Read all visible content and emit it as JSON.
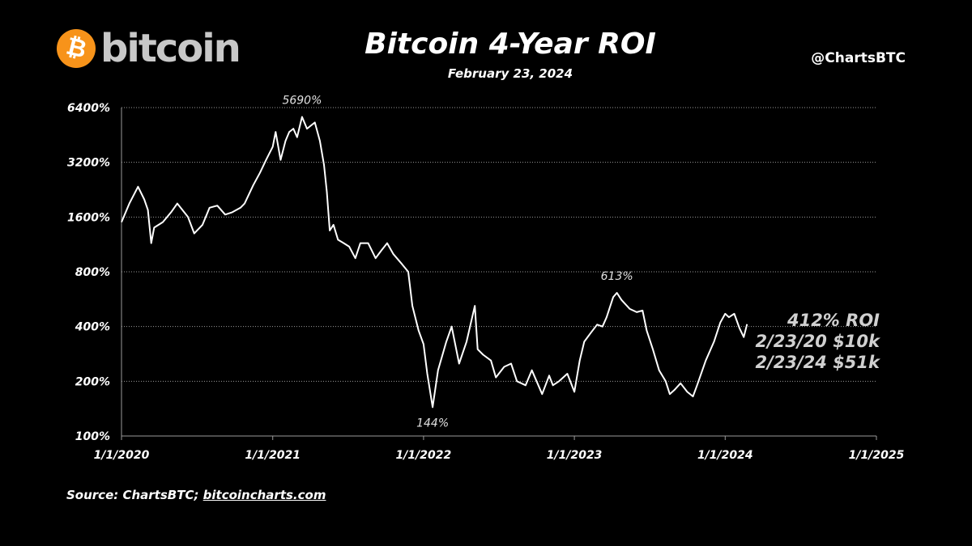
{
  "brand": {
    "wordmark": "bitcoin",
    "symbol": "₿",
    "icon": "bitcoin-logo-icon",
    "color": "#f7931a"
  },
  "handle": "@ChartsBTC",
  "source": {
    "prefix": "Source: ChartsBTC; ",
    "link": "bitcoincharts.com"
  },
  "callout": {
    "roi": "412% ROI",
    "line1": "2/23/20 $10k",
    "line2": "2/23/24 $51k"
  },
  "chart_data": {
    "type": "line",
    "title": "Bitcoin 4-Year ROI",
    "subtitle": "February 23, 2024",
    "xlabel": "",
    "ylabel": "",
    "y_scale": "log2",
    "ylim": [
      100,
      6400
    ],
    "xlim": [
      "2020-01-01",
      "2025-01-01"
    ],
    "y_ticks": [
      100,
      200,
      400,
      800,
      1600,
      3200,
      6400
    ],
    "y_tick_labels": [
      "100%",
      "200%",
      "400%",
      "800%",
      "1600%",
      "3200%",
      "6400%"
    ],
    "x_ticks": [
      "2020-01-01",
      "2021-01-01",
      "2022-01-01",
      "2023-01-01",
      "2024-01-01",
      "2025-01-01"
    ],
    "x_tick_labels": [
      "1/1/2020",
      "1/1/2021",
      "1/1/2022",
      "1/1/2023",
      "1/1/2024",
      "1/1/2025"
    ],
    "grid": {
      "horizontal": true,
      "style": "dotted"
    },
    "line_color": "#ffffff",
    "series": [
      {
        "x": [
          "2020-01-01",
          "2020-01-20",
          "2020-02-10",
          "2020-02-25",
          "2020-03-05",
          "2020-03-13",
          "2020-03-20",
          "2020-04-10",
          "2020-04-30",
          "2020-05-15",
          "2020-06-10",
          "2020-06-25",
          "2020-07-15",
          "2020-08-01",
          "2020-08-20",
          "2020-09-08",
          "2020-09-25",
          "2020-10-15",
          "2020-10-25",
          "2020-11-15",
          "2020-12-01",
          "2020-12-16",
          "2021-01-01",
          "2021-01-08",
          "2021-01-20",
          "2021-02-01",
          "2021-02-10",
          "2021-02-20",
          "2021-03-01",
          "2021-03-13",
          "2021-03-25",
          "2021-04-13",
          "2021-04-25",
          "2021-05-05",
          "2021-05-12",
          "2021-05-19",
          "2021-05-28",
          "2021-06-08",
          "2021-06-22",
          "2021-07-05",
          "2021-07-20",
          "2021-08-01",
          "2021-08-20",
          "2021-09-07",
          "2021-09-21",
          "2021-10-05",
          "2021-10-20",
          "2021-11-10",
          "2021-11-25",
          "2021-12-05",
          "2021-12-20",
          "2022-01-01",
          "2022-01-10",
          "2022-01-23",
          "2022-02-05",
          "2022-02-25",
          "2022-03-10",
          "2022-03-28",
          "2022-04-15",
          "2022-05-05",
          "2022-05-12",
          "2022-05-25",
          "2022-06-13",
          "2022-06-25",
          "2022-07-15",
          "2022-08-01",
          "2022-08-15",
          "2022-09-05",
          "2022-09-20",
          "2022-10-15",
          "2022-11-01",
          "2022-11-10",
          "2022-11-25",
          "2022-12-15",
          "2023-01-01",
          "2023-01-14",
          "2023-01-25",
          "2023-02-10",
          "2023-02-25",
          "2023-03-10",
          "2023-03-20",
          "2023-04-05",
          "2023-04-14",
          "2023-04-25",
          "2023-05-15",
          "2023-06-01",
          "2023-06-15",
          "2023-06-25",
          "2023-07-10",
          "2023-07-25",
          "2023-08-10",
          "2023-08-20",
          "2023-09-01",
          "2023-09-15",
          "2023-10-01",
          "2023-10-15",
          "2023-10-25",
          "2023-11-15",
          "2023-12-05",
          "2023-12-20",
          "2024-01-01",
          "2024-01-10",
          "2024-01-23",
          "2024-02-05",
          "2024-02-15",
          "2024-02-23"
        ],
        "y": [
          1500,
          1900,
          2350,
          2000,
          1750,
          1150,
          1400,
          1500,
          1700,
          1900,
          1600,
          1300,
          1450,
          1800,
          1850,
          1650,
          1700,
          1800,
          1900,
          2400,
          2800,
          3300,
          3900,
          4700,
          3300,
          4200,
          4700,
          4900,
          4400,
          5690,
          4900,
          5300,
          4200,
          3100,
          2200,
          1350,
          1450,
          1200,
          1150,
          1100,
          950,
          1150,
          1150,
          950,
          1050,
          1150,
          1000,
          880,
          800,
          520,
          380,
          320,
          220,
          144,
          230,
          330,
          400,
          250,
          330,
          520,
          300,
          280,
          260,
          210,
          240,
          250,
          200,
          190,
          230,
          170,
          215,
          190,
          200,
          220,
          175,
          260,
          330,
          370,
          410,
          400,
          450,
          580,
          613,
          560,
          500,
          480,
          490,
          380,
          300,
          230,
          200,
          170,
          180,
          195,
          175,
          165,
          190,
          260,
          330,
          420,
          470,
          450,
          470,
          390,
          350,
          412
        ]
      }
    ],
    "annotations": [
      {
        "text": "5690%",
        "x": "2021-03-13",
        "y": 5690
      },
      {
        "text": "613%",
        "x": "2023-04-14",
        "y": 613
      },
      {
        "text": "144%",
        "x": "2022-01-23",
        "y": 144
      }
    ]
  }
}
